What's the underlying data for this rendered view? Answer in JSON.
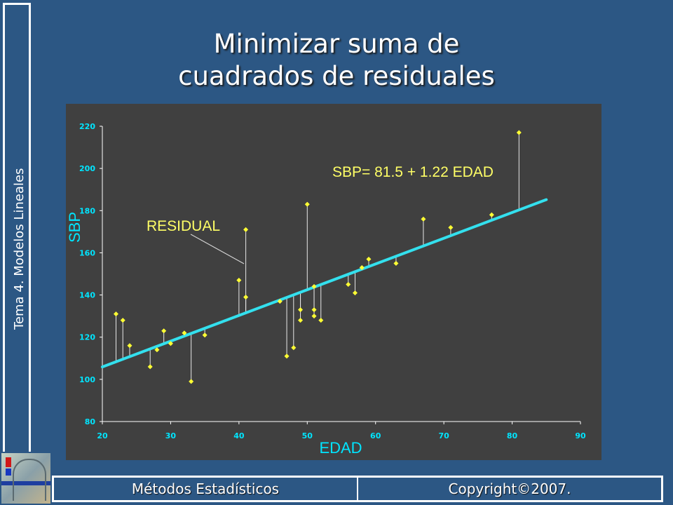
{
  "sidebar": {
    "title": "Tema 4. Modelos Lineales"
  },
  "slide": {
    "title_line1": "Minimizar suma de",
    "title_line2": "cuadrados de residuales"
  },
  "footer": {
    "left": "Métodos Estadísticos",
    "right": "Copyright©2007."
  },
  "colors": {
    "background": "#2c5784",
    "panel": "#404040",
    "axis_text": "#00e5ff",
    "points": "#ffff33",
    "line": "#33e0ee",
    "annotation": "#ffff66"
  },
  "chart_data": {
    "type": "scatter",
    "xlabel": "EDAD",
    "ylabel": "SBP",
    "xlim": [
      20,
      90
    ],
    "ylim": [
      80,
      220
    ],
    "x_ticks": [
      20,
      30,
      40,
      50,
      60,
      70,
      80,
      90
    ],
    "y_ticks": [
      80,
      100,
      120,
      140,
      160,
      180,
      200,
      220
    ],
    "grid": false,
    "equation_label": "SBP= 81.5 + 1.22 EDAD",
    "annotation_label": "RESIDUAL",
    "regression": {
      "intercept": 81.5,
      "slope": 1.22,
      "x_range": [
        20,
        85
      ]
    },
    "points": [
      {
        "x": 22,
        "y": 131
      },
      {
        "x": 23,
        "y": 128
      },
      {
        "x": 24,
        "y": 116
      },
      {
        "x": 27,
        "y": 106
      },
      {
        "x": 28,
        "y": 114
      },
      {
        "x": 29,
        "y": 123
      },
      {
        "x": 30,
        "y": 117
      },
      {
        "x": 32,
        "y": 122
      },
      {
        "x": 33,
        "y": 99
      },
      {
        "x": 35,
        "y": 121
      },
      {
        "x": 40,
        "y": 147
      },
      {
        "x": 41,
        "y": 139
      },
      {
        "x": 41,
        "y": 171
      },
      {
        "x": 46,
        "y": 137
      },
      {
        "x": 47,
        "y": 111
      },
      {
        "x": 48,
        "y": 115
      },
      {
        "x": 49,
        "y": 133
      },
      {
        "x": 49,
        "y": 128
      },
      {
        "x": 50,
        "y": 183
      },
      {
        "x": 51,
        "y": 144
      },
      {
        "x": 51,
        "y": 133
      },
      {
        "x": 51,
        "y": 130
      },
      {
        "x": 52,
        "y": 128
      },
      {
        "x": 56,
        "y": 145
      },
      {
        "x": 57,
        "y": 141
      },
      {
        "x": 58,
        "y": 153
      },
      {
        "x": 59,
        "y": 157
      },
      {
        "x": 63,
        "y": 155
      },
      {
        "x": 67,
        "y": 176
      },
      {
        "x": 71,
        "y": 172
      },
      {
        "x": 77,
        "y": 178
      },
      {
        "x": 81,
        "y": 217
      }
    ]
  }
}
